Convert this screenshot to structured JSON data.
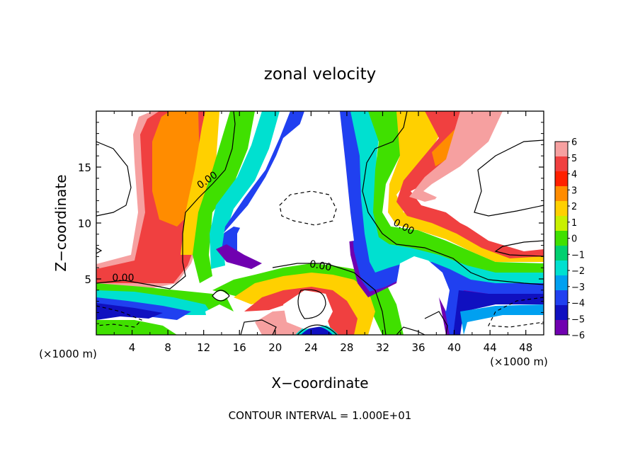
{
  "chart_data": {
    "type": "heatmap",
    "title": "zonal velocity",
    "xlabel": "X−coordinate",
    "ylabel": "Z−coordinate",
    "x_unit": "(×1000 m)",
    "y_unit": "(×1000 m)",
    "xlim": [
      0,
      50
    ],
    "ylim": [
      0,
      20
    ],
    "x_ticks": [
      4,
      8,
      12,
      16,
      20,
      24,
      28,
      32,
      36,
      40,
      44,
      48
    ],
    "y_ticks": [
      5,
      10,
      15
    ],
    "colorbar": {
      "levels": [
        6,
        5,
        4,
        3,
        2,
        1,
        0,
        -1,
        -2,
        -3,
        -4,
        -5,
        -6
      ],
      "labels": [
        "6",
        "5",
        "4",
        "3",
        "2",
        "1",
        "0",
        "−1",
        "−2",
        "−3",
        "−4",
        "−5",
        "−6"
      ],
      "colors": [
        "#f6a0a0",
        "#f04040",
        "#ff2000",
        "#ff8c00",
        "#ffd000",
        "#c8f000",
        "#40e000",
        "#00d070",
        "#00e0d0",
        "#00a0f0",
        "#2040f0",
        "#1010c0",
        "#7000b0"
      ]
    },
    "contour_labels": [
      {
        "text": "0.00",
        "x": 12.6,
        "y": 13.6,
        "angle": -35
      },
      {
        "text": "0.00",
        "x": 3.0,
        "y": 4.8,
        "angle": 0
      },
      {
        "text": "0.00",
        "x": 25.0,
        "y": 5.9,
        "angle": 10
      },
      {
        "text": "0.00",
        "x": 34.2,
        "y": 9.4,
        "angle": 28
      }
    ],
    "footer": "CONTOUR INTERVAL = 1.000E+01"
  }
}
